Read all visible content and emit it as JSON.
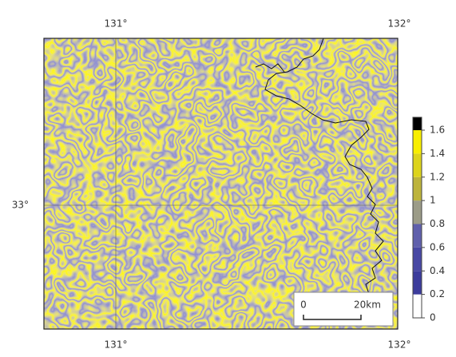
{
  "map": {
    "top_labels": [
      "131°",
      "132°"
    ],
    "bottom_labels": [
      "131°",
      "132°"
    ],
    "left_label": "33°",
    "colorbar": {
      "range": [
        0,
        1.6
      ],
      "ticks": [
        0,
        0.2,
        0.4,
        0.6,
        0.8,
        1,
        1.2,
        1.4,
        1.6
      ],
      "colors": [
        "#ffffff",
        "#3c3c9c",
        "#4848a4",
        "#6060ac",
        "#9c9c88",
        "#bdb43c",
        "#ddd41c",
        "#f8ee00",
        "#000000"
      ]
    },
    "scale_bar": {
      "start": "0",
      "end": "20km"
    }
  }
}
